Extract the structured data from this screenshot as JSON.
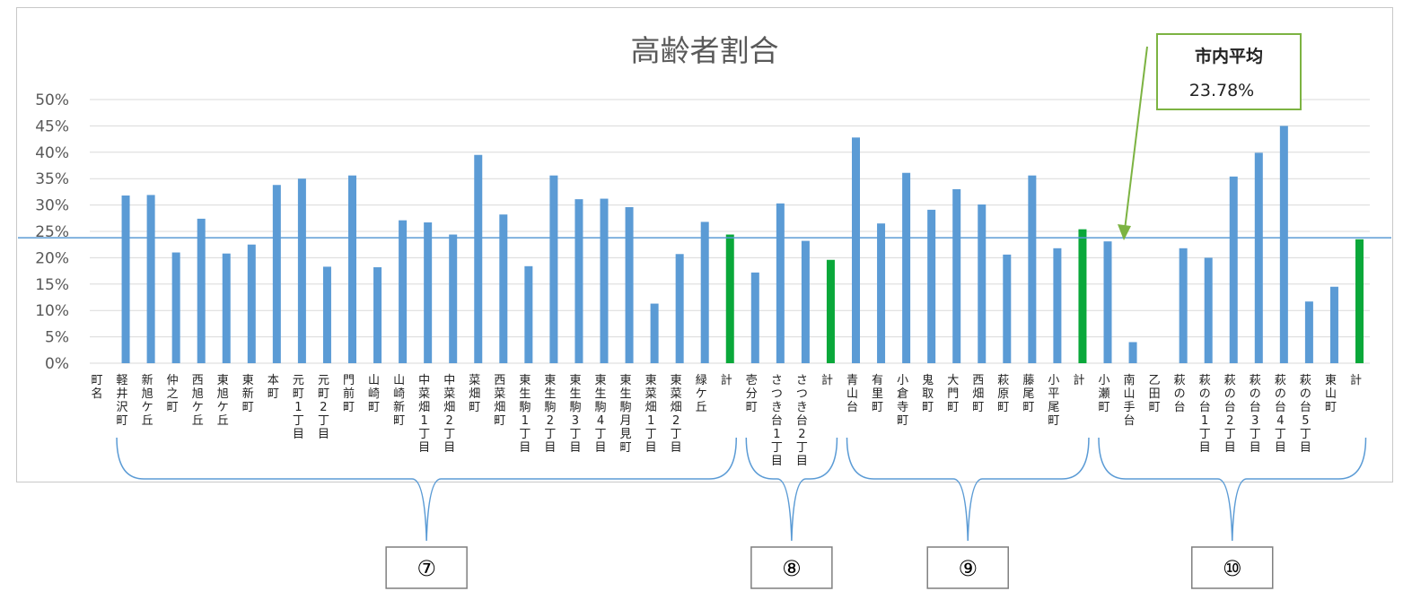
{
  "chart_data": {
    "type": "bar",
    "title": "高齢者割合",
    "xlabel": "",
    "ylabel": "",
    "ylim": [
      0,
      50
    ],
    "yticks": [
      "0%",
      "5%",
      "10%",
      "15%",
      "20%",
      "25%",
      "30%",
      "35%",
      "40%",
      "45%",
      "50%"
    ],
    "grid": true,
    "categories": [
      "町名",
      "軽井沢町",
      "新旭ケ丘",
      "仲之町",
      "西旭ケ丘",
      "東旭ケ丘",
      "東新町",
      "本町",
      "元町1丁目",
      "元町2丁目",
      "門前町",
      "山崎町",
      "山崎新町",
      "中菜畑1丁目",
      "中菜畑2丁目",
      "菜畑町",
      "西菜畑町",
      "東生駒1丁目",
      "東生駒2丁目",
      "東生駒3丁目",
      "東生駒4丁目",
      "東生駒月見町",
      "東菜畑1丁目",
      "東菜畑2丁目",
      "緑ケ丘",
      "計",
      "壱分町",
      "さつき台1丁目",
      "さつき台2丁目",
      "計",
      "青山台",
      "有里町",
      "小倉寺町",
      "鬼取町",
      "大門町",
      "西畑町",
      "萩原町",
      "藤尾町",
      "小平尾町",
      "計",
      "小瀬町",
      "南山手台",
      "乙田町",
      "萩の台",
      "萩の台1丁目",
      "萩の台2丁目",
      "萩の台3丁目",
      "萩の台4丁目",
      "萩の台5丁目",
      "東山町",
      "計"
    ],
    "values": [
      null,
      31.8,
      31.9,
      21.0,
      27.4,
      20.8,
      22.5,
      33.8,
      35.0,
      18.3,
      35.6,
      18.2,
      27.1,
      26.7,
      24.4,
      39.5,
      28.2,
      18.4,
      35.6,
      31.1,
      31.2,
      29.6,
      11.3,
      20.7,
      26.8,
      24.4,
      17.2,
      30.3,
      23.2,
      19.6,
      42.8,
      26.5,
      36.1,
      29.1,
      33.0,
      30.1,
      20.6,
      35.6,
      21.8,
      25.4,
      23.1,
      4.0,
      null,
      21.8,
      20.0,
      35.4,
      39.9,
      45.0,
      11.7,
      14.5,
      23.5
    ],
    "total_indices": [
      25,
      29,
      39,
      50
    ],
    "colors": {
      "bar": "#5b9bd5",
      "total": "#0aa83a",
      "average_line": "#5b9bd5",
      "callout_border": "#7cb342",
      "bracket": "#5b9bd5"
    },
    "average_line": {
      "value": 23.78
    },
    "callout": {
      "label": "市内平均",
      "value": "23.78%"
    },
    "groups": [
      {
        "label": "⑦",
        "from": 1,
        "to": 25
      },
      {
        "label": "⑧",
        "from": 26,
        "to": 29
      },
      {
        "label": "⑨",
        "from": 30,
        "to": 39
      },
      {
        "label": "⑩",
        "from": 40,
        "to": 50
      }
    ]
  }
}
